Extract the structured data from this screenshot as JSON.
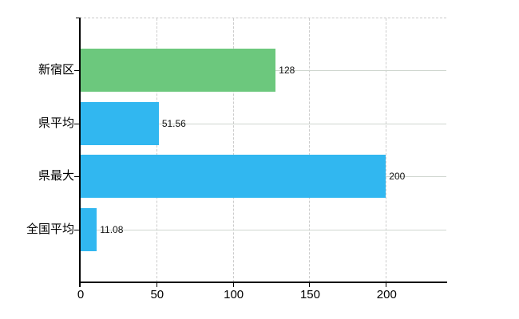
{
  "chart_data": {
    "type": "bar",
    "orientation": "horizontal",
    "title": "",
    "categories": [
      "新宿区",
      "県平均",
      "県最大",
      "全国平均"
    ],
    "values": [
      128,
      51.56,
      200,
      11.08
    ],
    "value_labels": [
      "128",
      "51.56",
      "200",
      "11.08"
    ],
    "bar_colors": [
      "#6cc87d",
      "#31b7f0",
      "#31b7f0",
      "#31b7f0"
    ],
    "x_tick_labels": [
      "0",
      "50",
      "100",
      "150",
      "200"
    ],
    "x_tick_values": [
      0,
      50,
      100,
      150,
      200
    ],
    "xlim": [
      0,
      240
    ],
    "xlabel": "",
    "ylabel": "",
    "grid": "on",
    "legend": "none",
    "colors": {
      "green_bar": "#6cc87d",
      "blue_bar": "#31b7f0",
      "axis": "#000000",
      "gridline_horizontal": "#cfd6cf",
      "gridline_vertical_dashed": "#cccccc",
      "top_border_dashed": "#c9c9c9",
      "background": "#ffffff",
      "text": "#000000"
    }
  }
}
